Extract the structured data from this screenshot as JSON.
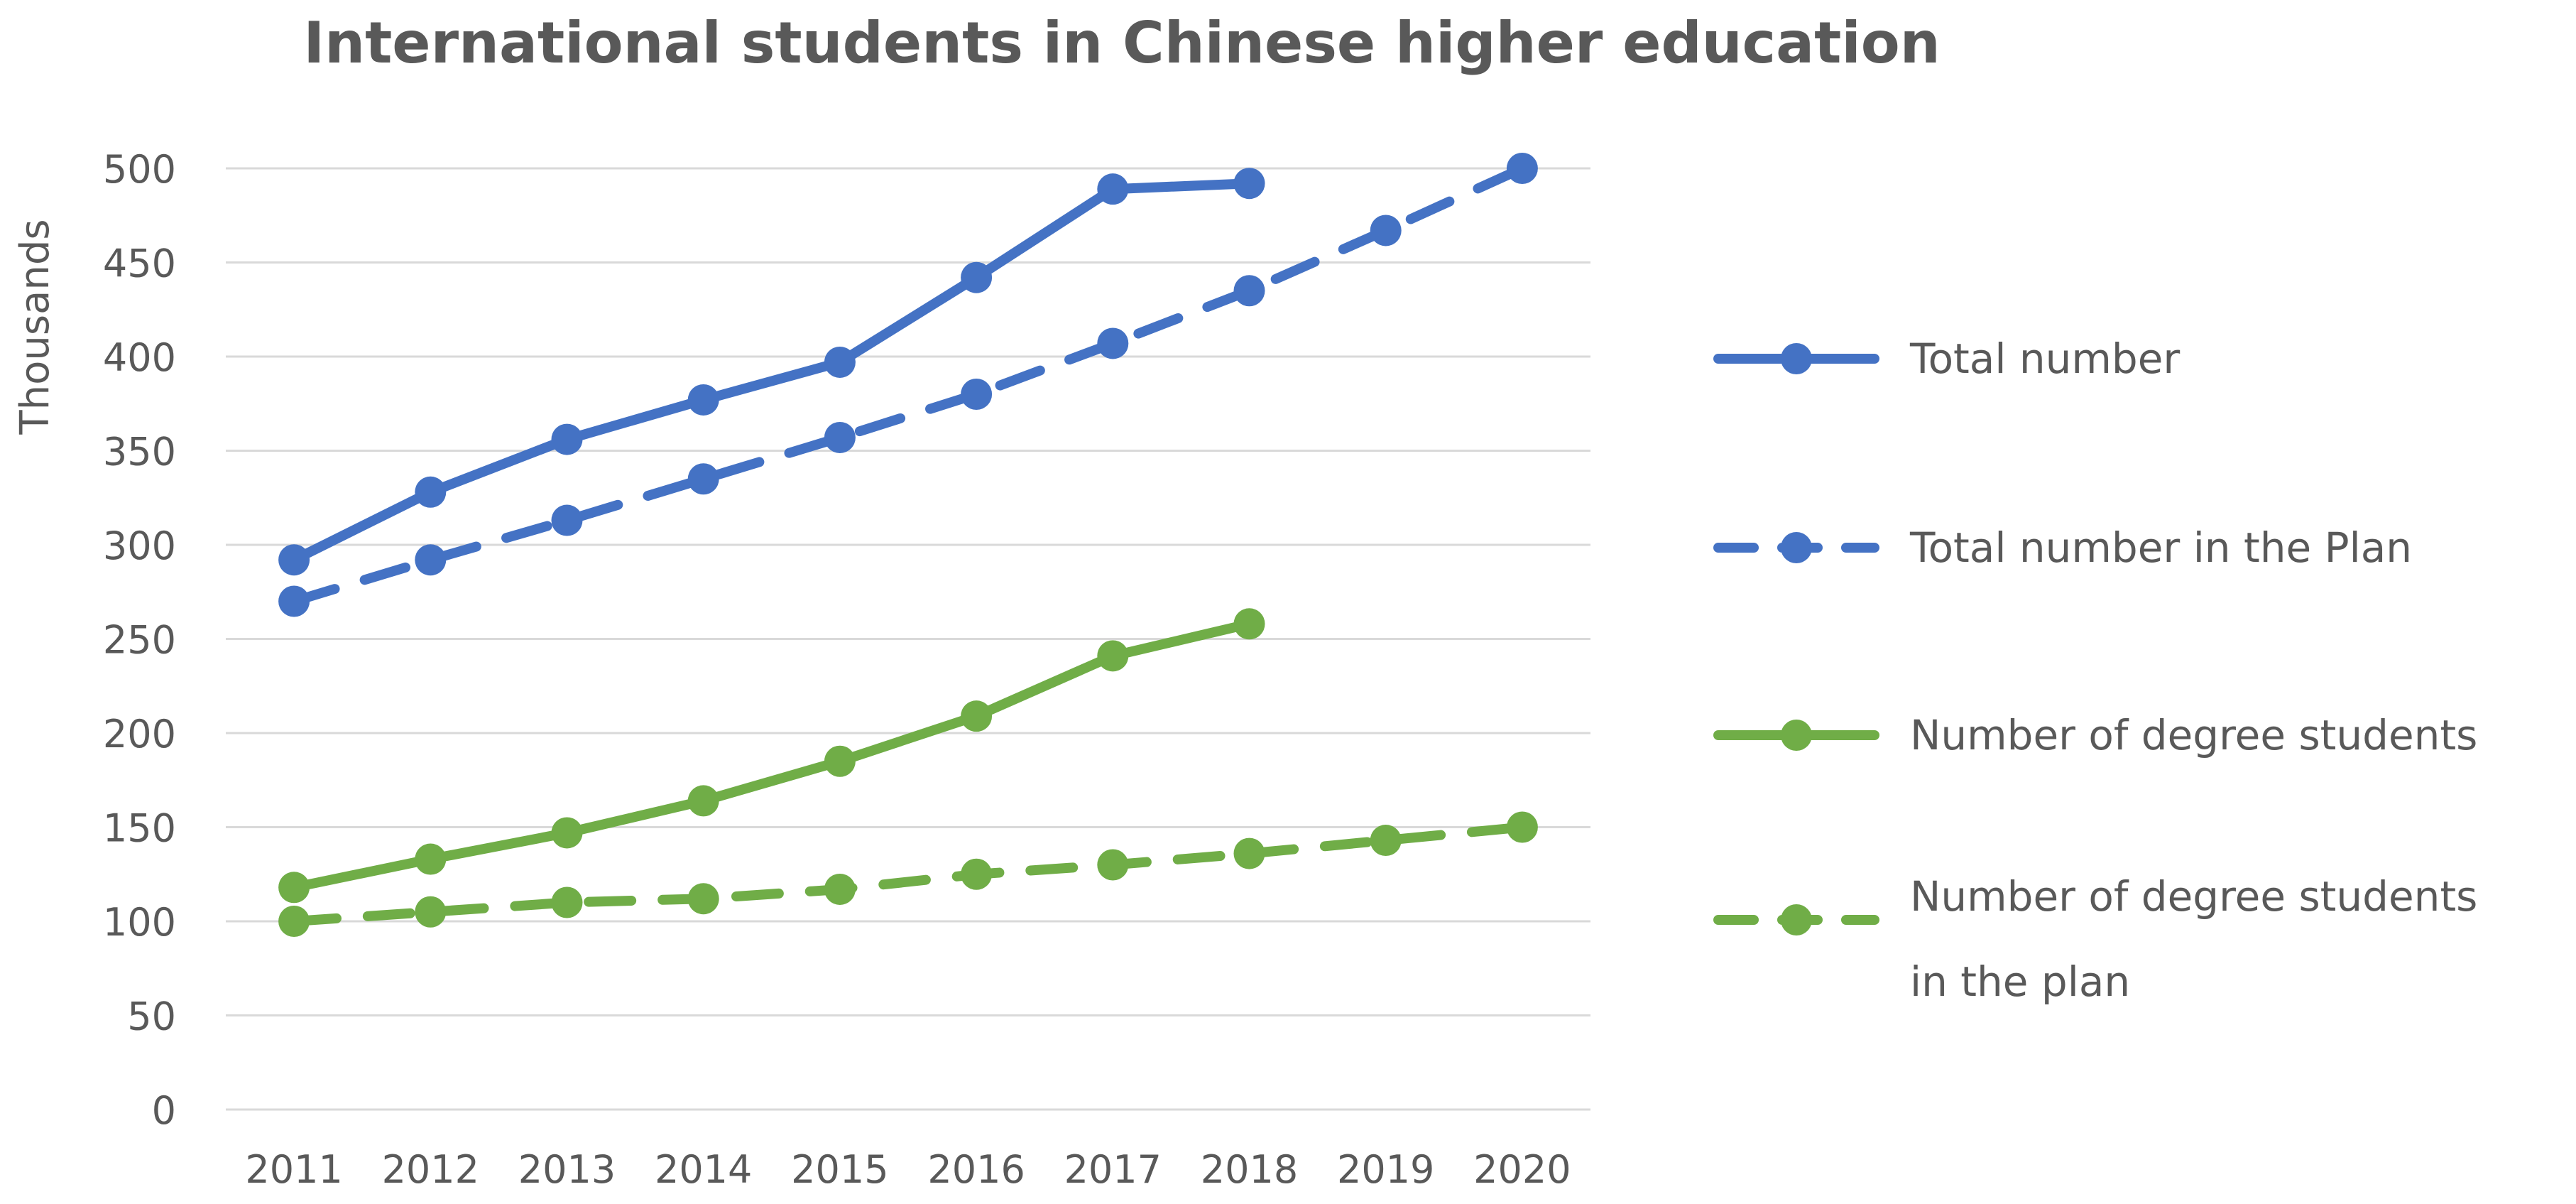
{
  "chart_data": {
    "type": "line",
    "title": "International students in Chinese higher education",
    "ylabel": "Thousands",
    "xlabel": "",
    "categories": [
      "2011",
      "2012",
      "2013",
      "2014",
      "2015",
      "2016",
      "2017",
      "2018",
      "2019",
      "2020"
    ],
    "ylim": [
      0,
      500
    ],
    "yticks": [
      0,
      50,
      100,
      150,
      200,
      250,
      300,
      350,
      400,
      450,
      500
    ],
    "grid": true,
    "legend_position": "right",
    "series": [
      {
        "name": "Total number",
        "color": "#4472C4",
        "style": "solid",
        "values": [
          292,
          328,
          356,
          377,
          397,
          442,
          489,
          492,
          null,
          null
        ]
      },
      {
        "name": "Total number in the Plan",
        "color": "#4472C4",
        "style": "dashed",
        "values": [
          270,
          292,
          313,
          335,
          357,
          380,
          407,
          435,
          467,
          500
        ]
      },
      {
        "name": "Number of degree students",
        "color": "#70AD47",
        "style": "solid",
        "values": [
          118,
          133,
          147,
          164,
          185,
          209,
          241,
          258,
          null,
          null
        ]
      },
      {
        "name": "Number of degree students in the plan",
        "legend_lines": [
          "Number of degree students",
          "in the plan"
        ],
        "color": "#70AD47",
        "style": "dashed",
        "values": [
          100,
          105,
          110,
          112,
          117,
          125,
          130,
          136,
          143,
          150
        ]
      }
    ]
  }
}
